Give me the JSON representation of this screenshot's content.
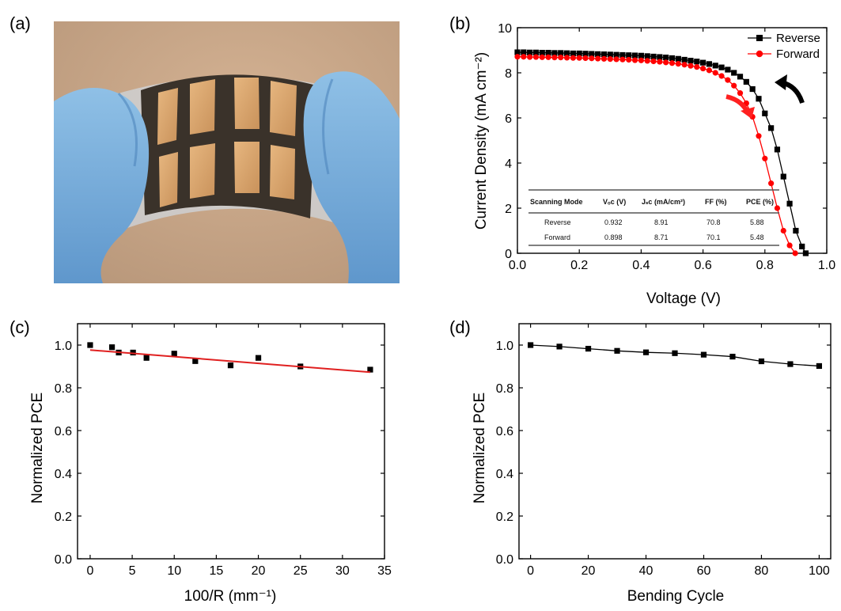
{
  "panels": [
    {
      "label": "(a)"
    },
    {
      "label": "(b)"
    },
    {
      "label": "(c)"
    },
    {
      "label": "(d)"
    }
  ],
  "photo": {
    "subject": "flexible-solar-cell-held-by-gloved-fingers"
  },
  "chart_data": [
    {
      "id": "b",
      "type": "line",
      "xlabel": "Voltage (V)",
      "ylabel": "Current Density (mA cm⁻²)",
      "xlim": [
        0.0,
        1.0
      ],
      "ylim": [
        0,
        10
      ],
      "xticks": [
        0.0,
        0.2,
        0.4,
        0.6,
        0.8,
        1.0
      ],
      "xtick_labels": [
        "0.0",
        "0.2",
        "0.4",
        "0.6",
        "0.8",
        "1.0"
      ],
      "yticks": [
        0,
        2,
        4,
        6,
        8,
        10
      ],
      "ytick_labels": [
        "0",
        "2",
        "4",
        "6",
        "8",
        "10"
      ],
      "legend_position": "top-right",
      "series": [
        {
          "name": "Reverse",
          "color": "#000000",
          "marker": "square",
          "x": [
            0.0,
            0.02,
            0.04,
            0.06,
            0.08,
            0.1,
            0.12,
            0.14,
            0.16,
            0.18,
            0.2,
            0.22,
            0.24,
            0.26,
            0.28,
            0.3,
            0.32,
            0.34,
            0.36,
            0.38,
            0.4,
            0.42,
            0.44,
            0.46,
            0.48,
            0.5,
            0.52,
            0.54,
            0.56,
            0.58,
            0.6,
            0.62,
            0.64,
            0.66,
            0.68,
            0.7,
            0.72,
            0.74,
            0.76,
            0.78,
            0.8,
            0.82,
            0.84,
            0.86,
            0.88,
            0.9,
            0.92,
            0.932
          ],
          "y": [
            8.91,
            8.91,
            8.9,
            8.9,
            8.89,
            8.89,
            8.88,
            8.88,
            8.87,
            8.86,
            8.86,
            8.85,
            8.84,
            8.83,
            8.82,
            8.81,
            8.8,
            8.79,
            8.78,
            8.77,
            8.76,
            8.74,
            8.72,
            8.7,
            8.68,
            8.65,
            8.62,
            8.58,
            8.54,
            8.5,
            8.45,
            8.39,
            8.32,
            8.24,
            8.14,
            8.0,
            7.83,
            7.6,
            7.28,
            6.85,
            6.2,
            5.55,
            4.6,
            3.4,
            2.2,
            1.0,
            0.3,
            0.0
          ]
        },
        {
          "name": "Forward",
          "color": "#ff0000",
          "marker": "circle",
          "x": [
            0.0,
            0.02,
            0.04,
            0.06,
            0.08,
            0.1,
            0.12,
            0.14,
            0.16,
            0.18,
            0.2,
            0.22,
            0.24,
            0.26,
            0.28,
            0.3,
            0.32,
            0.34,
            0.36,
            0.38,
            0.4,
            0.42,
            0.44,
            0.46,
            0.48,
            0.5,
            0.52,
            0.54,
            0.56,
            0.58,
            0.6,
            0.62,
            0.64,
            0.66,
            0.68,
            0.7,
            0.72,
            0.74,
            0.76,
            0.78,
            0.8,
            0.82,
            0.84,
            0.86,
            0.88,
            0.898
          ],
          "y": [
            8.71,
            8.71,
            8.7,
            8.7,
            8.69,
            8.69,
            8.68,
            8.68,
            8.67,
            8.66,
            8.66,
            8.65,
            8.64,
            8.63,
            8.62,
            8.61,
            8.6,
            8.59,
            8.58,
            8.56,
            8.55,
            8.53,
            8.51,
            8.49,
            8.46,
            8.43,
            8.4,
            8.36,
            8.31,
            8.26,
            8.19,
            8.11,
            8.0,
            7.86,
            7.68,
            7.43,
            7.1,
            6.65,
            6.05,
            5.2,
            4.2,
            3.1,
            2.0,
            1.0,
            0.35,
            0.0
          ]
        }
      ],
      "arrows": [
        {
          "near": "Reverse",
          "color": "#000000"
        },
        {
          "near": "Forward",
          "color": "#ff0000"
        }
      ],
      "inset_table": {
        "headers": [
          "Scanning Mode",
          "Vₒᴄ (V)",
          "Jₛᴄ (mA/cm²)",
          "FF (%)",
          "PCE (%)"
        ],
        "rows": [
          [
            "Reverse",
            "0.932",
            "8.91",
            "70.8",
            "5.88"
          ],
          [
            "Forward",
            "0.898",
            "8.71",
            "70.1",
            "5.48"
          ]
        ]
      }
    },
    {
      "id": "c",
      "type": "scatter",
      "xlabel": "100/R (mm⁻¹)",
      "ylabel": "Normalized PCE",
      "xlim": [
        -1.5,
        35
      ],
      "ylim": [
        0.0,
        1.1
      ],
      "xticks": [
        0,
        5,
        10,
        15,
        20,
        25,
        30,
        35
      ],
      "xtick_labels": [
        "0",
        "5",
        "10",
        "15",
        "20",
        "25",
        "30",
        "35"
      ],
      "yticks": [
        0.0,
        0.2,
        0.4,
        0.6,
        0.8,
        1.0
      ],
      "ytick_labels": [
        "0.0",
        "0.2",
        "0.4",
        "0.6",
        "0.8",
        "1.0"
      ],
      "series": [
        {
          "color": "#000000",
          "marker": "square",
          "x": [
            0,
            2.6,
            3.4,
            5.1,
            6.7,
            10.0,
            12.5,
            16.7,
            20.0,
            25.0,
            33.3
          ],
          "y": [
            1.0,
            0.99,
            0.965,
            0.965,
            0.94,
            0.96,
            0.925,
            0.905,
            0.94,
            0.9,
            0.885
          ]
        }
      ],
      "fit_line": {
        "color": "#e02020",
        "x": [
          0,
          33.3
        ],
        "y": [
          0.977,
          0.873
        ]
      }
    },
    {
      "id": "d",
      "type": "line",
      "xlabel": "Bending Cycle",
      "ylabel": "Normalized PCE",
      "xlim": [
        -4,
        104
      ],
      "ylim": [
        0.0,
        1.1
      ],
      "xticks": [
        0,
        20,
        40,
        60,
        80,
        100
      ],
      "xtick_labels": [
        "0",
        "20",
        "40",
        "60",
        "80",
        "100"
      ],
      "yticks": [
        0.0,
        0.2,
        0.4,
        0.6,
        0.8,
        1.0
      ],
      "ytick_labels": [
        "0.0",
        "0.2",
        "0.4",
        "0.6",
        "0.8",
        "1.0"
      ],
      "series": [
        {
          "color": "#000000",
          "marker": "square",
          "x": [
            0,
            10,
            20,
            30,
            40,
            50,
            60,
            70,
            80,
            90,
            100
          ],
          "y": [
            1.0,
            0.993,
            0.983,
            0.973,
            0.966,
            0.962,
            0.955,
            0.946,
            0.924,
            0.911,
            0.902
          ]
        }
      ]
    }
  ]
}
